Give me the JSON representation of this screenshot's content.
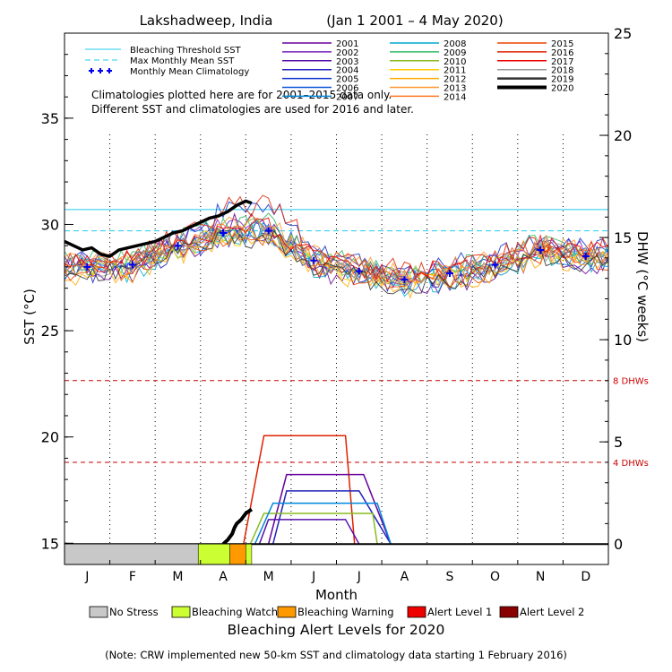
{
  "chart_data": {
    "type": "line",
    "title": "Lakshadweep, India",
    "date_range": "(Jan 1 2001 – 4 May 2020)",
    "xlabel": "Month",
    "ylabel_left": "SST (°C)",
    "ylabel_right": "DHW (°C weeks)",
    "months": [
      "J",
      "F",
      "M",
      "A",
      "M",
      "J",
      "J",
      "A",
      "S",
      "O",
      "N",
      "D"
    ],
    "sst_ylim": [
      14,
      39
    ],
    "sst_ticks": [
      15,
      20,
      25,
      30,
      35
    ],
    "dhw_ylim": [
      -1,
      25
    ],
    "dhw_ticks": [
      0,
      5,
      10,
      15,
      20,
      25
    ],
    "grid": "dotted vertical month lines",
    "bleaching_threshold_sst": 30.7,
    "max_monthly_mean_sst": 29.7,
    "dhw_thresholds": [
      {
        "value": 8,
        "label": "8 DHWs"
      },
      {
        "value": 4,
        "label": "4 DHWs"
      }
    ],
    "legend_left": [
      {
        "label": "Bleaching Threshold SST",
        "color": "#22ccee",
        "style": "solid"
      },
      {
        "label": "Max Monthly Mean SST",
        "color": "#22ccee",
        "style": "dashed"
      },
      {
        "label": "Monthly Mean Climatology",
        "color": "#0000ee",
        "style": "crosses"
      }
    ],
    "note_lines": [
      "Climatologies plotted here are for 2001–2015 data only.",
      "Different SST and climatologies are used for 2016 and later."
    ],
    "years": [
      {
        "year": "2001",
        "color": "#660099"
      },
      {
        "year": "2002",
        "color": "#7722bb"
      },
      {
        "year": "2003",
        "color": "#5511aa"
      },
      {
        "year": "2004",
        "color": "#2222bb"
      },
      {
        "year": "2005",
        "color": "#1133cc"
      },
      {
        "year": "2006",
        "color": "#1155dd"
      },
      {
        "year": "2007",
        "color": "#0088dd"
      },
      {
        "year": "2008",
        "color": "#00aacc"
      },
      {
        "year": "2009",
        "color": "#33bb66"
      },
      {
        "year": "2010",
        "color": "#88bb22"
      },
      {
        "year": "2011",
        "color": "#ffcc00"
      },
      {
        "year": "2012",
        "color": "#ffaa00"
      },
      {
        "year": "2013",
        "color": "#ff9933"
      },
      {
        "year": "2014",
        "color": "#ff7722"
      },
      {
        "year": "2015",
        "color": "#ee4400"
      },
      {
        "year": "2016",
        "color": "#dd2200"
      },
      {
        "year": "2017",
        "color": "#ee0000"
      },
      {
        "year": "2018",
        "color": "#999999"
      },
      {
        "year": "2019",
        "color": "#333333"
      },
      {
        "year": "2020",
        "color": "#000000"
      }
    ],
    "climatology": {
      "name": "Monthly Mean Climatology",
      "months": [
        1,
        2,
        3,
        4,
        5,
        6,
        7,
        8,
        9,
        10,
        11,
        12
      ],
      "sst": [
        28.0,
        28.1,
        29.0,
        29.6,
        29.7,
        28.3,
        27.8,
        27.4,
        27.7,
        28.1,
        28.8,
        28.5
      ]
    },
    "sst_2020": {
      "name": "2020",
      "month_pos": [
        0.0,
        0.2,
        0.4,
        0.6,
        0.8,
        1.0,
        1.2,
        1.4,
        1.6,
        1.8,
        2.0,
        2.2,
        2.4,
        2.6,
        2.8,
        3.0,
        3.2,
        3.4,
        3.6,
        3.8,
        4.0,
        4.13
      ],
      "sst": [
        29.2,
        29.0,
        28.8,
        28.9,
        28.6,
        28.5,
        28.8,
        28.9,
        29.0,
        29.1,
        29.2,
        29.4,
        29.6,
        29.7,
        29.9,
        30.1,
        30.3,
        30.4,
        30.6,
        30.9,
        31.1,
        31.0
      ]
    },
    "dhw_2020": {
      "month_pos": [
        3.5,
        3.6,
        3.7,
        3.75,
        3.8,
        3.9,
        4.0,
        4.13
      ],
      "dhw": [
        0,
        0.2,
        0.5,
        0.8,
        1.0,
        1.2,
        1.5,
        1.7
      ]
    },
    "dhw_other_years": [
      {
        "year": "2016",
        "color": "#dd2200",
        "peak": 5.3,
        "rise": [
          3.95,
          4.4
        ],
        "fall": [
          6.2,
          6.4
        ]
      },
      {
        "year": "2005",
        "color": "#2222bb",
        "peak": 2.6,
        "rise": [
          4.6,
          4.9
        ],
        "fall": [
          6.5,
          7.2
        ]
      },
      {
        "year": "2001",
        "color": "#660099",
        "peak": 3.4,
        "rise": [
          4.5,
          4.9
        ],
        "fall": [
          6.6,
          7.2
        ]
      },
      {
        "year": "2010",
        "color": "#88bb22",
        "peak": 1.5,
        "rise": [
          4.1,
          4.4
        ],
        "fall": [
          6.8,
          6.9
        ]
      },
      {
        "year": "2003",
        "color": "#5511aa",
        "peak": 1.2,
        "rise": [
          4.3,
          4.5
        ],
        "fall": [
          6.2,
          6.5
        ]
      },
      {
        "year": "2007",
        "color": "#0088dd",
        "peak": 2.0,
        "rise": [
          4.2,
          4.6
        ],
        "fall": [
          6.9,
          7.2
        ]
      }
    ],
    "alert_bar_2020": [
      {
        "level": "No Stress",
        "from": 0,
        "to": 2.95,
        "color": "#c8c8c8"
      },
      {
        "level": "Bleaching Watch",
        "from": 2.95,
        "to": 3.65,
        "color": "#ccff33"
      },
      {
        "level": "Bleaching Warning",
        "from": 3.65,
        "to": 4.0,
        "color": "#ff9900"
      },
      {
        "level": "Bleaching Watch",
        "from": 4.0,
        "to": 4.13,
        "color": "#ccff33"
      }
    ],
    "alert_legend": [
      {
        "label": "No Stress",
        "color": "#c8c8c8"
      },
      {
        "label": "Bleaching Watch",
        "color": "#ccff33"
      },
      {
        "label": "Bleaching Warning",
        "color": "#ff9900"
      },
      {
        "label": "Alert Level 1",
        "color": "#ee0000"
      },
      {
        "label": "Alert Level 2",
        "color": "#880000"
      }
    ],
    "alert_title": "Bleaching Alert Levels for 2020",
    "footnote": "(Note: CRW implemented new 50-km SST and climatology data starting 1 February 2016)"
  }
}
